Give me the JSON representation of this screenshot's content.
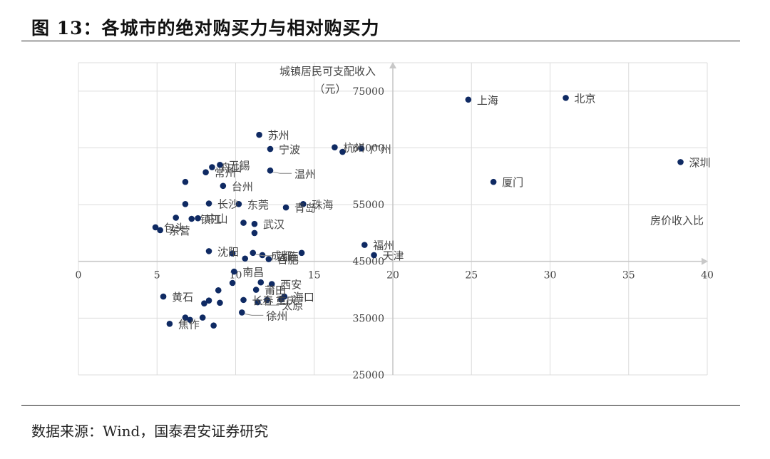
{
  "figure": {
    "title": "图 13：各城市的绝对购买力与相对购买力",
    "source": "数据来源：Wind，国泰君安证券研究"
  },
  "colors": {
    "point": "#0f2a63",
    "axis": "#c8c8c8",
    "grid": "#dcdcdc",
    "text": "#444444",
    "callout": "#888888"
  },
  "chart_data": {
    "type": "scatter",
    "xlabel": "房价收入比",
    "ylabel": "城镇居民可支配收入（元）",
    "xlim": [
      0,
      40
    ],
    "ylim": [
      25000,
      80000
    ],
    "x_ticks": [
      0,
      5,
      10,
      15,
      20,
      25,
      30,
      35,
      40
    ],
    "y_ticks": [
      25000,
      35000,
      45000,
      55000,
      65000,
      75000
    ],
    "y_axis_crosses_x_at": 20,
    "x_axis_crosses_y_at": 45000,
    "grid": true,
    "points": [
      {
        "x": 24.8,
        "y": 73500,
        "label": "上海"
      },
      {
        "x": 31.0,
        "y": 73800,
        "label": "北京"
      },
      {
        "x": 38.3,
        "y": 62500,
        "label": "深圳"
      },
      {
        "x": 26.4,
        "y": 59000,
        "label": "厦门"
      },
      {
        "x": 11.5,
        "y": 67300,
        "label": "苏州"
      },
      {
        "x": 16.3,
        "y": 65100,
        "label": "杭州"
      },
      {
        "x": 18.0,
        "y": 64900,
        "label": "广州"
      },
      {
        "x": 16.8,
        "y": 64300
      },
      {
        "x": 12.2,
        "y": 64800,
        "label": "宁波"
      },
      {
        "x": 9.0,
        "y": 62000,
        "label": "无锡"
      },
      {
        "x": 8.5,
        "y": 61600,
        "label": "舟山"
      },
      {
        "x": 8.1,
        "y": 60700,
        "label": "常州"
      },
      {
        "x": 12.2,
        "y": 61000,
        "label": "温州",
        "callout": true
      },
      {
        "x": 6.8,
        "y": 59000
      },
      {
        "x": 9.2,
        "y": 58300,
        "label": "台州"
      },
      {
        "x": 6.8,
        "y": 55100
      },
      {
        "x": 8.3,
        "y": 55200,
        "label": "长沙"
      },
      {
        "x": 10.2,
        "y": 55100,
        "label": "东莞"
      },
      {
        "x": 13.2,
        "y": 54500,
        "label": "青岛"
      },
      {
        "x": 14.3,
        "y": 55100,
        "label": "珠海"
      },
      {
        "x": 6.2,
        "y": 52700
      },
      {
        "x": 7.2,
        "y": 52500,
        "label": "镇江"
      },
      {
        "x": 7.6,
        "y": 52600,
        "label": "中山"
      },
      {
        "x": 4.9,
        "y": 51000,
        "label": "包头"
      },
      {
        "x": 5.2,
        "y": 50500,
        "label": "东营"
      },
      {
        "x": 10.5,
        "y": 51800
      },
      {
        "x": 11.2,
        "y": 51600,
        "label": "武汉"
      },
      {
        "x": 11.2,
        "y": 50000
      },
      {
        "x": 18.2,
        "y": 47900,
        "label": "福州"
      },
      {
        "x": 18.8,
        "y": 46100,
        "label": "天津"
      },
      {
        "x": 8.3,
        "y": 46800,
        "label": "沈阳"
      },
      {
        "x": 9.8,
        "y": 46400
      },
      {
        "x": 11.1,
        "y": 46500,
        "label": "大连",
        "callout": true
      },
      {
        "x": 11.7,
        "y": 46100,
        "label": "成都"
      },
      {
        "x": 10.6,
        "y": 45500
      },
      {
        "x": 12.1,
        "y": 45400,
        "label": "合肥"
      },
      {
        "x": 14.2,
        "y": 46500
      },
      {
        "x": 9.9,
        "y": 43200,
        "label": "南昌"
      },
      {
        "x": 9.8,
        "y": 41200
      },
      {
        "x": 11.6,
        "y": 41300
      },
      {
        "x": 12.3,
        "y": 41000,
        "label": "西安"
      },
      {
        "x": 8.9,
        "y": 39900
      },
      {
        "x": 11.3,
        "y": 40000,
        "label": "莆田"
      },
      {
        "x": 5.4,
        "y": 38800,
        "label": "黄石"
      },
      {
        "x": 8.3,
        "y": 38100
      },
      {
        "x": 8.0,
        "y": 37600
      },
      {
        "x": 9.0,
        "y": 37700
      },
      {
        "x": 10.5,
        "y": 38200,
        "label": "长春"
      },
      {
        "x": 11.4,
        "y": 37800,
        "label": "太原",
        "callout": true
      },
      {
        "x": 12.0,
        "y": 38200,
        "label": "重庆"
      },
      {
        "x": 12.9,
        "y": 38300
      },
      {
        "x": 13.1,
        "y": 38800,
        "label": "海口"
      },
      {
        "x": 10.4,
        "y": 36000,
        "label": "徐州",
        "callout": true
      },
      {
        "x": 6.8,
        "y": 35100
      },
      {
        "x": 7.1,
        "y": 34700
      },
      {
        "x": 7.9,
        "y": 35100
      },
      {
        "x": 5.8,
        "y": 34000,
        "label": "焦作"
      },
      {
        "x": 8.6,
        "y": 33700
      }
    ]
  }
}
